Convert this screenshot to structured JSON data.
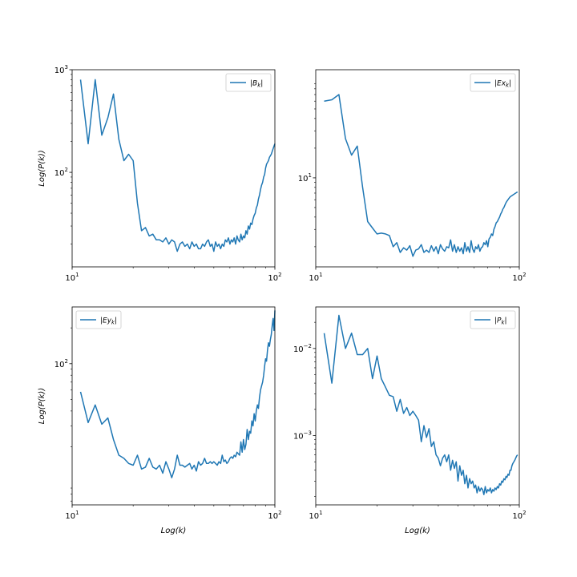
{
  "chart_data": [
    {
      "type": "line",
      "title": "",
      "xlabel": "",
      "ylabel": "Log(P(k))",
      "xscale": "log",
      "yscale": "log",
      "xlim": [
        10,
        100
      ],
      "ylim": [
        12,
        1000
      ],
      "xticks": [
        {
          "value": 10,
          "base": "10",
          "exp": "1"
        },
        {
          "value": 100,
          "base": "10",
          "exp": "2"
        }
      ],
      "yticks": [
        {
          "value": 100,
          "base": "10",
          "exp": "2"
        },
        {
          "value": 1000,
          "base": "10",
          "exp": "3"
        }
      ],
      "legend": {
        "position": "top-right",
        "entries": [
          {
            "name": "|B",
            "subscript": "k",
            "suffix": "|"
          }
        ]
      },
      "color": "#1f77b4",
      "series": [
        {
          "name": "|Bk|",
          "x": [
            11,
            12,
            13,
            14,
            15,
            16,
            17,
            18,
            19,
            20,
            21,
            22,
            23,
            24,
            25,
            26,
            27,
            28,
            29,
            30,
            31,
            32,
            33,
            34,
            35,
            36,
            37,
            38,
            39,
            40,
            41,
            42,
            43,
            44,
            45,
            46,
            47,
            48,
            49,
            50,
            51,
            52,
            53,
            54,
            55,
            56,
            57,
            58,
            59,
            60,
            61,
            62,
            63,
            64,
            65,
            66,
            67,
            68,
            69,
            70,
            71,
            72,
            73,
            74,
            75,
            76,
            77,
            78,
            79,
            80,
            81,
            82,
            83,
            84,
            85,
            86,
            87,
            88,
            89,
            90,
            91,
            92,
            93,
            94,
            95,
            96,
            97,
            98,
            99,
            100
          ],
          "y": [
            800,
            190,
            800,
            230,
            340,
            580,
            210,
            130,
            150,
            130,
            50,
            27,
            29,
            24,
            25,
            22,
            22,
            21,
            23,
            20,
            22,
            21,
            17,
            20,
            21,
            19,
            20,
            18,
            21,
            19,
            20,
            18,
            18,
            20,
            19,
            21,
            22,
            19,
            20,
            17,
            21,
            19,
            20,
            18,
            20,
            19,
            22,
            21,
            23,
            20,
            22,
            21,
            23,
            20,
            24,
            22,
            21,
            25,
            22,
            24,
            23,
            27,
            25,
            30,
            28,
            32,
            31,
            35,
            38,
            40,
            45,
            48,
            55,
            60,
            68,
            75,
            80,
            90,
            95,
            110,
            120,
            125,
            130,
            140,
            145,
            150,
            160,
            170,
            180,
            190
          ]
        }
      ]
    },
    {
      "type": "line",
      "title": "",
      "xlabel": "",
      "ylabel": "",
      "xscale": "log",
      "yscale": "log",
      "xlim": [
        10,
        100
      ],
      "ylim": [
        1.25,
        125
      ],
      "xticks": [
        {
          "value": 10,
          "base": "10",
          "exp": "1"
        },
        {
          "value": 100,
          "base": "10",
          "exp": "2"
        }
      ],
      "yticks": [
        {
          "value": 10,
          "base": "10",
          "exp": "1"
        }
      ],
      "legend": {
        "position": "top-right",
        "entries": [
          {
            "name": "|Ex",
            "subscript": "k",
            "suffix": "|"
          }
        ]
      },
      "color": "#1f77b4",
      "series": [
        {
          "name": "|Exk|",
          "x": [
            11,
            12,
            13,
            14,
            15,
            16,
            17,
            18,
            19,
            20,
            21,
            22,
            23,
            24,
            25,
            26,
            27,
            28,
            29,
            30,
            31,
            32,
            33,
            34,
            35,
            36,
            37,
            38,
            39,
            40,
            41,
            42,
            43,
            44,
            45,
            46,
            47,
            48,
            49,
            50,
            51,
            52,
            53,
            54,
            55,
            56,
            57,
            58,
            59,
            60,
            61,
            62,
            63,
            64,
            65,
            66,
            67,
            68,
            69,
            70,
            71,
            72,
            73,
            74,
            75,
            76,
            77,
            78,
            79,
            80,
            81,
            82,
            83,
            84,
            85,
            86,
            87,
            88,
            89,
            90,
            91,
            92,
            93,
            94,
            95,
            96,
            97,
            98
          ],
          "y": [
            60,
            62,
            70,
            25,
            17,
            21,
            8,
            3.6,
            3.1,
            2.7,
            2.75,
            2.7,
            2.6,
            2.0,
            2.2,
            1.75,
            1.95,
            1.85,
            2.05,
            1.6,
            1.85,
            1.9,
            2.1,
            1.75,
            1.85,
            1.75,
            2.05,
            1.8,
            2.0,
            1.7,
            2.1,
            1.9,
            1.8,
            2.0,
            1.95,
            2.35,
            1.8,
            2.1,
            1.75,
            2.0,
            1.8,
            1.95,
            1.7,
            2.2,
            1.8,
            2.0,
            1.75,
            2.3,
            1.9,
            1.75,
            2.0,
            1.9,
            2.1,
            1.8,
            1.95,
            2.0,
            2.2,
            2.1,
            2.3,
            2.0,
            2.4,
            2.5,
            2.7,
            2.6,
            3.0,
            3.2,
            3.5,
            3.6,
            3.8,
            4.0,
            4.3,
            4.5,
            4.8,
            5.0,
            5.3,
            5.6,
            5.8,
            6.0,
            6.2,
            6.4,
            6.5,
            6.6,
            6.7,
            6.8,
            6.9,
            7.0,
            7.1,
            7.2
          ]
        }
      ]
    },
    {
      "type": "line",
      "title": "",
      "xlabel": "Log(k)",
      "ylabel": "Log(P(k))",
      "xscale": "log",
      "yscale": "log",
      "xlim": [
        10,
        100
      ],
      "ylim": [
        6.5,
        300
      ],
      "xticks": [
        {
          "value": 10,
          "base": "10",
          "exp": "1"
        },
        {
          "value": 100,
          "base": "10",
          "exp": "2"
        }
      ],
      "yticks": [
        {
          "value": 100,
          "base": "10",
          "exp": "2"
        }
      ],
      "legend": {
        "position": "top-left",
        "entries": [
          {
            "name": "|Ey",
            "subscript": "k",
            "suffix": "|"
          }
        ]
      },
      "color": "#1f77b4",
      "series": [
        {
          "name": "|Eyk|",
          "x": [
            11,
            12,
            13,
            14,
            15,
            16,
            17,
            18,
            19,
            20,
            21,
            22,
            23,
            24,
            25,
            26,
            27,
            28,
            29,
            30,
            31,
            32,
            33,
            34,
            35,
            36,
            37,
            38,
            39,
            40,
            41,
            42,
            43,
            44,
            45,
            46,
            47,
            48,
            49,
            50,
            51,
            52,
            53,
            54,
            55,
            56,
            57,
            58,
            59,
            60,
            61,
            62,
            63,
            64,
            65,
            66,
            67,
            68,
            69,
            70,
            71,
            72,
            73,
            74,
            75,
            76,
            77,
            78,
            79,
            80,
            81,
            82,
            83,
            84,
            85,
            86,
            87,
            88,
            89,
            90,
            91,
            92,
            93,
            94,
            95,
            96,
            97,
            98,
            99,
            100
          ],
          "y": [
            58,
            32,
            45,
            31,
            35,
            23,
            17,
            16,
            14.5,
            14,
            17,
            13,
            13.5,
            16,
            13.5,
            13,
            14,
            12,
            15,
            13,
            11,
            13,
            17,
            14,
            14,
            13.5,
            14,
            14.5,
            13,
            14,
            12.5,
            15,
            14,
            14.5,
            16,
            14.5,
            14.5,
            15,
            14.5,
            15,
            14.5,
            14,
            15,
            14.5,
            17,
            15,
            15.5,
            14.5,
            15,
            16,
            16.5,
            16,
            17,
            16.5,
            18,
            17.5,
            17,
            22,
            18,
            23,
            19,
            21,
            28,
            23,
            27,
            26,
            33,
            30,
            38,
            33,
            40,
            45,
            42,
            52,
            60,
            65,
            70,
            80,
            95,
            110,
            105,
            130,
            150,
            140,
            160,
            175,
            210,
            240,
            190,
            280
          ]
        }
      ]
    },
    {
      "type": "line",
      "title": "",
      "xlabel": "Log(k)",
      "ylabel": "",
      "xscale": "log",
      "yscale": "log",
      "xlim": [
        10,
        100
      ],
      "ylim": [
        0.00016,
        0.03
      ],
      "xticks": [
        {
          "value": 10,
          "base": "10",
          "exp": "1"
        },
        {
          "value": 100,
          "base": "10",
          "exp": "2"
        }
      ],
      "yticks": [
        {
          "value": 0.001,
          "base": "10",
          "exp": "−3"
        },
        {
          "value": 0.01,
          "base": "10",
          "exp": "−2"
        }
      ],
      "legend": {
        "position": "top-right",
        "entries": [
          {
            "name": "|P",
            "subscript": "k",
            "suffix": "|"
          }
        ]
      },
      "color": "#1f77b4",
      "series": [
        {
          "name": "|Pk|",
          "x": [
            11,
            12,
            13,
            14,
            15,
            16,
            17,
            18,
            19,
            20,
            21,
            22,
            23,
            24,
            25,
            26,
            27,
            28,
            29,
            30,
            31,
            32,
            33,
            34,
            35,
            36,
            37,
            38,
            39,
            40,
            41,
            42,
            43,
            44,
            45,
            46,
            47,
            48,
            49,
            50,
            51,
            52,
            53,
            54,
            55,
            56,
            57,
            58,
            59,
            60,
            61,
            62,
            63,
            64,
            65,
            66,
            67,
            68,
            69,
            70,
            71,
            72,
            73,
            74,
            75,
            76,
            77,
            78,
            79,
            80,
            81,
            82,
            83,
            84,
            85,
            86,
            87,
            88,
            89,
            90,
            91,
            92,
            93,
            94,
            95,
            96,
            97,
            98
          ],
          "y": [
            0.015,
            0.004,
            0.024,
            0.01,
            0.015,
            0.0085,
            0.0085,
            0.01,
            0.0045,
            0.0082,
            0.0045,
            0.0036,
            0.0029,
            0.0028,
            0.0019,
            0.0026,
            0.0018,
            0.0021,
            0.0017,
            0.0019,
            0.0017,
            0.0015,
            0.00085,
            0.0013,
            0.00095,
            0.0012,
            0.00075,
            0.00085,
            0.0006,
            0.00055,
            0.00045,
            0.00055,
            0.0006,
            0.0005,
            0.0006,
            0.0004,
            0.00052,
            0.00042,
            0.0005,
            0.0003,
            0.00045,
            0.00035,
            0.0004,
            0.00028,
            0.00035,
            0.00025,
            0.00032,
            0.00028,
            0.0003,
            0.00025,
            0.00027,
            0.00022,
            0.00026,
            0.00023,
            0.00025,
            0.00024,
            0.00021,
            0.00026,
            0.00022,
            0.00024,
            0.00023,
            0.00025,
            0.00022,
            0.00024,
            0.00023,
            0.00025,
            0.00024,
            0.00026,
            0.00025,
            0.00028,
            0.00027,
            0.0003,
            0.00029,
            0.00032,
            0.00031,
            0.00034,
            0.00033,
            0.00036,
            0.00035,
            0.0004,
            0.0004,
            0.00045,
            0.00048,
            0.0005,
            0.00052,
            0.00055,
            0.00058,
            0.0006
          ]
        }
      ]
    }
  ]
}
